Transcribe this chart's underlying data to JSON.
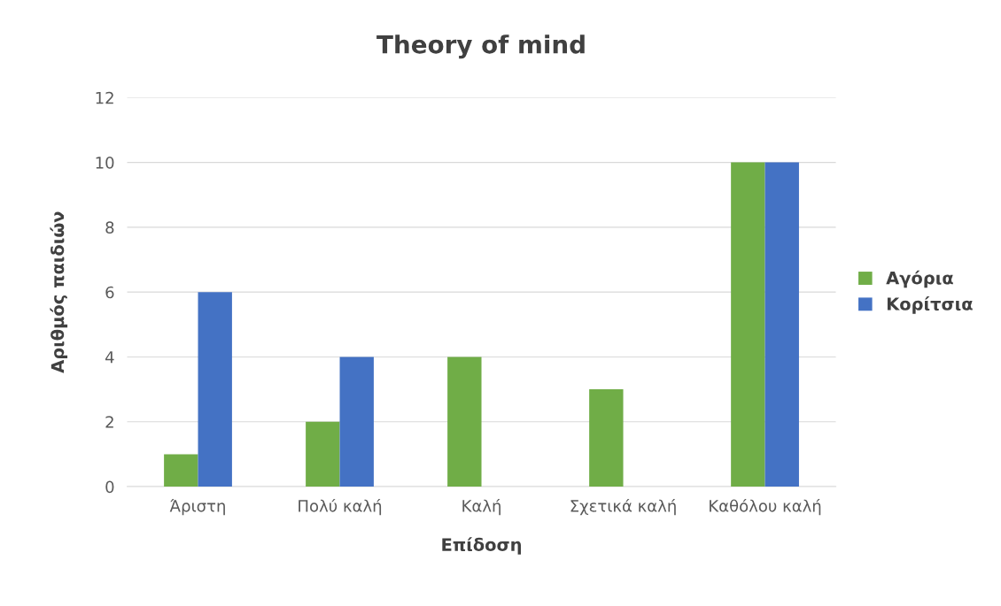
{
  "chart_data": {
    "type": "bar",
    "title": "Theory of mind",
    "xlabel": "Επίδοση",
    "ylabel": "Αριθμός παιδιών",
    "categories": [
      "Άριστη",
      "Πολύ καλή",
      "Καλή",
      "Σχετικά καλή",
      "Καθόλου καλή"
    ],
    "series": [
      {
        "name": "Αγόρια",
        "color": "#70ad47",
        "values": [
          1,
          2,
          4,
          3,
          10
        ]
      },
      {
        "name": "Κορίτσια",
        "color": "#4472c4",
        "values": [
          6,
          4,
          0,
          0,
          10
        ]
      }
    ],
    "ylim": [
      0,
      12
    ],
    "yticks": [
      0,
      2,
      4,
      6,
      8,
      10,
      12
    ],
    "grid": "y",
    "legend": "right"
  }
}
